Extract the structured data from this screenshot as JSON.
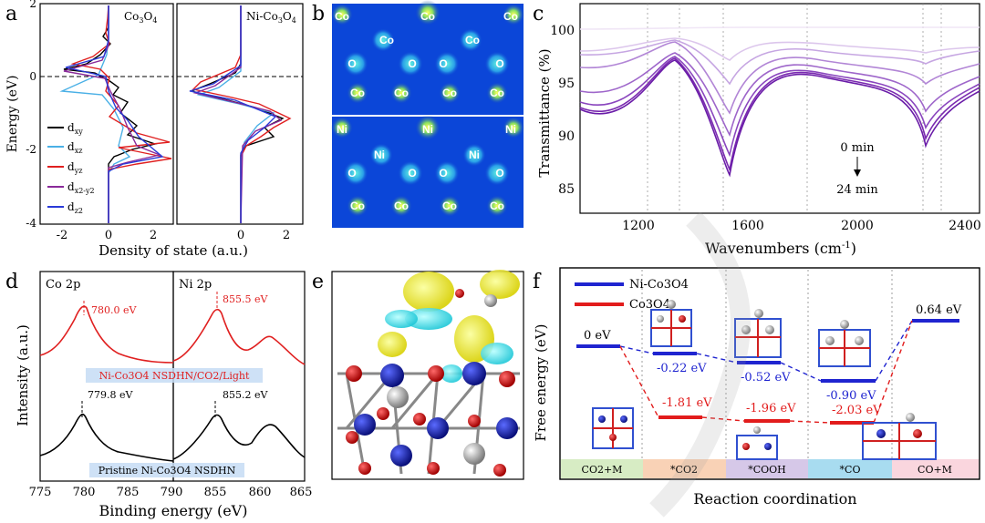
{
  "panels": {
    "a": {
      "letter": "a",
      "ylabel": "Energy (eV)",
      "xlabel": "Density of state (a.u.)",
      "left_title_base": "Co",
      "left_title_parts": [
        "Co",
        "3",
        "O",
        "4"
      ],
      "right_title_parts": [
        "Ni-Co",
        "3",
        "O",
        "4"
      ],
      "yticks": [
        "2",
        "0",
        "-2",
        "-4"
      ],
      "xticks_left": [
        "-2",
        "0",
        "2"
      ],
      "xticks_right": [
        "0",
        "2"
      ],
      "legend": [
        {
          "base": "d",
          "sub": "xy",
          "color": "#000000"
        },
        {
          "base": "d",
          "sub": "xz",
          "color": "#4ab0e6"
        },
        {
          "base": "d",
          "sub": "yz",
          "color": "#e02020"
        },
        {
          "base": "d",
          "sub": "x2-y2",
          "color": "#8a2a9a"
        },
        {
          "base": "d",
          "sub": "z2",
          "color": "#2a3ad8"
        }
      ]
    },
    "b": {
      "letter": "b",
      "top_labels": [
        "Co",
        "Co",
        "Co",
        "Co",
        "Co",
        "O",
        "O",
        "O",
        "O",
        "Co",
        "Co",
        "Co",
        "Co"
      ],
      "bottom_labels": [
        "Ni",
        "Ni",
        "Ni",
        "Ni",
        "Ni",
        "O",
        "O",
        "O",
        "O",
        "Co",
        "Co",
        "Co",
        "Co"
      ]
    },
    "c": {
      "letter": "c",
      "ylabel": "Transmittance (%)",
      "xlabel_base": "Wavenumbers (cm",
      "xlabel_sup": "-1",
      "xlabel_end": ")",
      "yticks": [
        "100",
        "95",
        "90",
        "85"
      ],
      "xticks": [
        "1200",
        "1600",
        "2000",
        "2400"
      ],
      "annot_start": "0 min",
      "annot_end": "24 min"
    },
    "d": {
      "letter": "d",
      "ylabel": "Intensity (a.u.)",
      "xlabel": "Binding energy (eV)",
      "left_title": "Co 2p",
      "right_title": "Ni 2p",
      "peak_red_left": "780.0 eV",
      "peak_black_left": "779.8 eV",
      "peak_red_right": "855.5 eV",
      "peak_black_right": "855.2 eV",
      "xticks_left": [
        "775",
        "780",
        "785",
        "790"
      ],
      "xticks_right": [
        "855",
        "860",
        "865"
      ],
      "label_light": "Ni-Co3O4 NSDHN/CO2/Light",
      "label_pristine": "Pristine Ni-Co3O4 NSDHN"
    },
    "e": {
      "letter": "e"
    },
    "f": {
      "letter": "f",
      "ylabel": "Free energy (eV)",
      "xlabel": "Reaction coordination",
      "legend_ni": "Ni-Co3O4",
      "legend_co": "Co3O4",
      "stages": [
        "CO2+M",
        "*CO2",
        "*COOH",
        "*CO",
        "CO+M"
      ],
      "blue_values": [
        "0 eV",
        "-0.22 eV",
        "-0.52 eV",
        "-0.90 eV",
        "0.64 eV"
      ],
      "red_values": [
        "-1.81 eV",
        "-1.96 eV",
        "-2.03 eV"
      ],
      "colors": {
        "blue": "#1f24d0",
        "red": "#e21c1c"
      }
    }
  }
}
